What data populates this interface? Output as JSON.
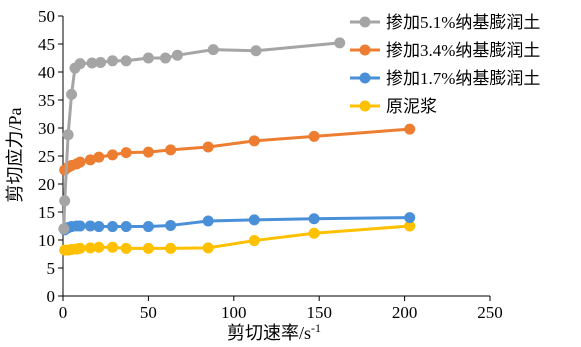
{
  "chart_data": {
    "type": "line",
    "xlabel": "剪切速率/s",
    "xlabel_sup": "-1",
    "ylabel": "剪切应力/Pa",
    "xlim": [
      0,
      250
    ],
    "ylim": [
      0,
      50
    ],
    "xticks": [
      0,
      50,
      100,
      150,
      200,
      250
    ],
    "yticks": [
      0,
      5,
      10,
      15,
      20,
      25,
      30,
      35,
      40,
      45,
      50
    ],
    "grid": false,
    "legend_position": "top-right",
    "series": [
      {
        "name": "掺加5.1%纳基膨润土",
        "color": "#a5a5a5",
        "x": [
          0.5,
          1,
          3,
          5,
          7,
          10,
          17,
          22,
          29,
          37,
          50,
          60,
          67,
          88,
          113,
          162
        ],
        "y": [
          12,
          17,
          28.8,
          36,
          40.7,
          41.5,
          41.6,
          41.7,
          42,
          42,
          42.5,
          42.5,
          43,
          44,
          43.8,
          45.2
        ]
      },
      {
        "name": "掺加3.4%纳基膨润土",
        "color": "#ed7d31",
        "x": [
          1,
          3,
          5,
          8,
          10,
          16,
          21,
          29,
          37,
          50,
          63,
          85,
          112,
          147,
          203
        ],
        "y": [
          22.5,
          23,
          23.3,
          23.6,
          23.9,
          24.3,
          24.8,
          25.2,
          25.6,
          25.7,
          26.1,
          26.6,
          27.7,
          28.5,
          29.8
        ]
      },
      {
        "name": "掺加1.7%纳基膨润土",
        "color": "#4a90d9",
        "x": [
          1,
          3,
          5,
          8,
          10,
          16,
          21,
          29,
          37,
          50,
          63,
          85,
          112,
          147,
          203
        ],
        "y": [
          11.8,
          12.2,
          12.4,
          12.5,
          12.5,
          12.5,
          12.4,
          12.4,
          12.4,
          12.4,
          12.6,
          13.4,
          13.6,
          13.8,
          14
        ]
      },
      {
        "name": "原泥浆",
        "color": "#ffc000",
        "x": [
          1,
          3,
          5,
          8,
          10,
          16,
          21,
          29,
          37,
          50,
          63,
          85,
          112,
          147,
          203
        ],
        "y": [
          8.2,
          8.2,
          8.3,
          8.4,
          8.5,
          8.6,
          8.7,
          8.7,
          8.5,
          8.5,
          8.5,
          8.6,
          9.9,
          11.2,
          12.5
        ]
      }
    ]
  }
}
